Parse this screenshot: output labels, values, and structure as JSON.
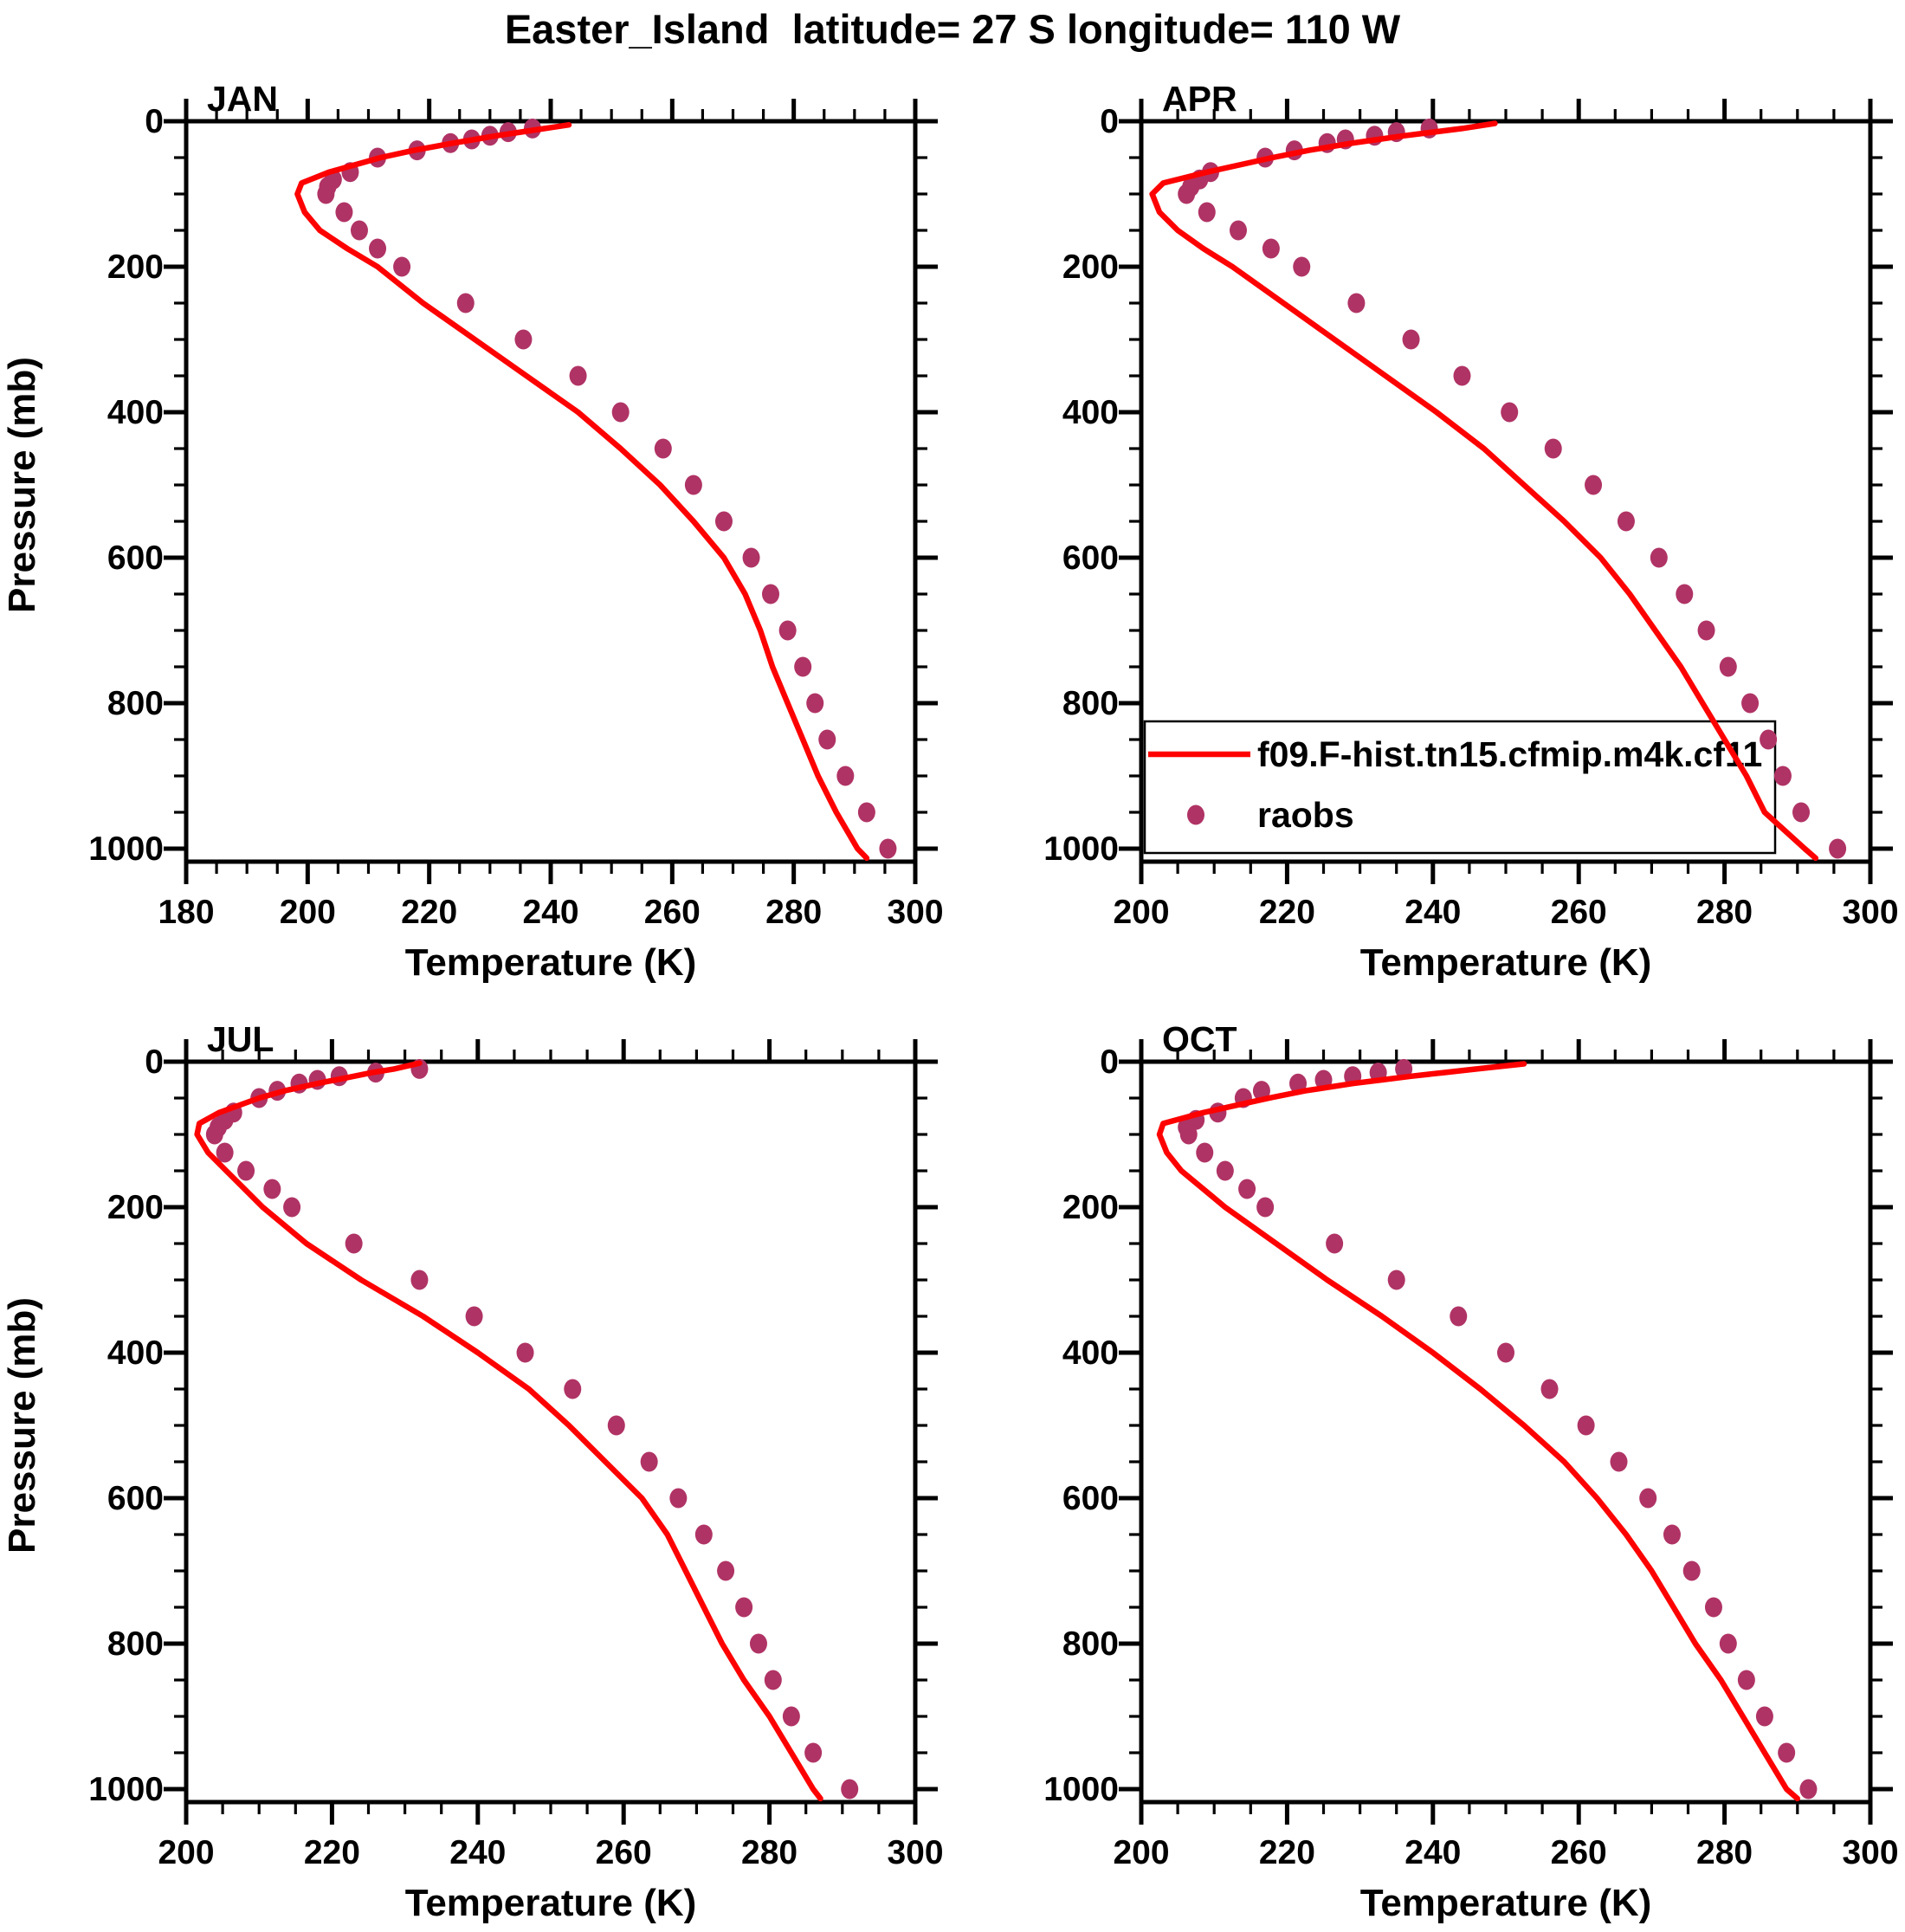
{
  "title": "Easter_Island  latitude= 27 S longitude= 110 W",
  "colors": {
    "model_line": "#FF0000",
    "raobs_marker": "#B03365",
    "axis": "#000000",
    "background": "#FFFFFF"
  },
  "legend": {
    "position": "inside APR panel, lower left",
    "entries": [
      {
        "label": "f09.F-hist.tn15.cfmip.m4k.cf11",
        "type": "line",
        "color": "#FF0000"
      },
      {
        "label": "raobs",
        "type": "marker",
        "color": "#B03365"
      }
    ]
  },
  "axes": {
    "xlabel": "Temperature (K)",
    "ylabel": "Pressure (mb)",
    "y_ticks": [
      0,
      200,
      400,
      600,
      800,
      1000
    ],
    "y_minor_step_mb": 50,
    "x_major_step_k": 20,
    "x_minor_step_k": 5,
    "y_range_mb": [
      0,
      1018
    ],
    "y_axis_direction": "increasing downward",
    "grid": false
  },
  "chart_data": [
    {
      "type": "line",
      "panel": "JAN",
      "xlabel": "Temperature (K)",
      "ylabel": "Pressure (mb)",
      "xlim": [
        180,
        300
      ],
      "x_ticks": [
        180,
        200,
        220,
        240,
        260,
        280,
        300
      ],
      "series": [
        {
          "name": "f09.F-hist.tn15.cfmip.m4k.cf11",
          "style": "line",
          "color": "#FF0000",
          "pressure_mb": [
            5,
            10,
            15,
            20,
            25,
            30,
            40,
            50,
            70,
            85,
            100,
            125,
            150,
            175,
            200,
            250,
            300,
            350,
            400,
            450,
            500,
            550,
            600,
            650,
            700,
            750,
            800,
            850,
            900,
            950,
            1000,
            1013
          ],
          "temperature_k": [
            243,
            239,
            235,
            231,
            227.5,
            224,
            217.5,
            212,
            203.5,
            199,
            198.3,
            199.5,
            202,
            206.5,
            211.5,
            219,
            227.5,
            236,
            244.5,
            251.5,
            258,
            263.5,
            268.5,
            272,
            274.5,
            276.5,
            279,
            281.5,
            284,
            287,
            290.5,
            292
          ]
        },
        {
          "name": "raobs",
          "style": "scatter",
          "color": "#B03365",
          "pressure_mb": [
            10,
            15,
            20,
            25,
            30,
            40,
            50,
            70,
            80,
            90,
            100,
            125,
            150,
            175,
            200,
            250,
            300,
            350,
            400,
            450,
            500,
            550,
            600,
            650,
            700,
            750,
            800,
            850,
            900,
            950,
            1000
          ],
          "temperature_k": [
            237,
            233,
            230,
            227,
            223.5,
            218,
            211.5,
            207,
            204.2,
            203.3,
            203,
            206,
            208.5,
            211.5,
            215.5,
            226,
            235.5,
            244.5,
            251.5,
            258.5,
            263.5,
            268.5,
            273,
            276.2,
            279,
            281.5,
            283.5,
            285.5,
            288.5,
            292,
            295.5
          ]
        }
      ]
    },
    {
      "type": "line",
      "panel": "APR",
      "xlabel": "Temperature (K)",
      "ylabel": "Pressure (mb)",
      "xlim": [
        200,
        300
      ],
      "x_ticks": [
        200,
        220,
        240,
        260,
        280,
        300
      ],
      "series": [
        {
          "name": "f09.F-hist.tn15.cfmip.m4k.cf11",
          "style": "line",
          "color": "#FF0000",
          "pressure_mb": [
            3,
            10,
            15,
            20,
            25,
            30,
            40,
            50,
            70,
            85,
            100,
            125,
            150,
            175,
            200,
            250,
            300,
            350,
            400,
            450,
            500,
            550,
            600,
            650,
            700,
            750,
            800,
            850,
            900,
            950,
            1000,
            1013
          ],
          "temperature_k": [
            248.5,
            244,
            240,
            236,
            232.5,
            229,
            223,
            218,
            209,
            203,
            201.5,
            202.5,
            205,
            208.5,
            212.5,
            219.5,
            226.5,
            233.5,
            240.5,
            247,
            252.5,
            258,
            263,
            267,
            270.5,
            274,
            277,
            280,
            283,
            285.5,
            291,
            292.5
          ]
        },
        {
          "name": "raobs",
          "style": "scatter",
          "color": "#B03365",
          "pressure_mb": [
            10,
            15,
            20,
            25,
            30,
            40,
            50,
            70,
            80,
            90,
            100,
            125,
            150,
            175,
            200,
            250,
            300,
            350,
            400,
            450,
            500,
            550,
            600,
            650,
            700,
            750,
            800,
            850,
            900,
            950,
            1000
          ],
          "temperature_k": [
            239.5,
            235,
            232,
            228,
            225.5,
            221,
            217,
            209.5,
            208,
            206.8,
            206.2,
            209,
            213.3,
            217.8,
            222,
            229.5,
            237,
            244,
            250.5,
            256.5,
            262,
            266.5,
            271,
            274.5,
            277.5,
            280.5,
            283.5,
            286,
            288,
            290.5,
            295.5
          ]
        }
      ]
    },
    {
      "type": "line",
      "panel": "JUL",
      "xlabel": "Temperature (K)",
      "ylabel": "Pressure (mb)",
      "xlim": [
        200,
        300
      ],
      "x_ticks": [
        200,
        220,
        240,
        260,
        280,
        300
      ],
      "series": [
        {
          "name": "f09.F-hist.tn15.cfmip.m4k.cf11",
          "style": "line",
          "color": "#FF0000",
          "pressure_mb": [
            2,
            10,
            15,
            20,
            25,
            30,
            40,
            50,
            70,
            85,
            100,
            125,
            150,
            175,
            200,
            250,
            300,
            350,
            400,
            450,
            500,
            550,
            600,
            650,
            700,
            750,
            800,
            850,
            900,
            950,
            1000,
            1013
          ],
          "temperature_k": [
            232,
            228.5,
            225.5,
            223,
            220.5,
            218,
            213.5,
            210,
            204.5,
            201.8,
            201.5,
            203,
            205.5,
            208,
            210.5,
            216.5,
            224,
            232.5,
            240,
            247,
            252.5,
            257.5,
            262.5,
            266,
            268.5,
            271,
            273.5,
            276.5,
            280,
            283,
            286,
            287
          ]
        },
        {
          "name": "raobs",
          "style": "scatter",
          "color": "#B03365",
          "pressure_mb": [
            10,
            15,
            20,
            25,
            30,
            40,
            50,
            70,
            80,
            90,
            100,
            125,
            150,
            175,
            200,
            250,
            300,
            350,
            400,
            450,
            500,
            550,
            600,
            650,
            700,
            750,
            800,
            850,
            900,
            950,
            1000
          ],
          "temperature_k": [
            232,
            226,
            221,
            218,
            215.5,
            212.5,
            210,
            206.5,
            205.3,
            204.4,
            203.9,
            205.3,
            208.2,
            211.8,
            214.5,
            223,
            232,
            239.5,
            246.5,
            253,
            259,
            263.5,
            267.5,
            271,
            274,
            276.5,
            278.5,
            280.5,
            283,
            286,
            291
          ]
        }
      ]
    },
    {
      "type": "line",
      "panel": "OCT",
      "xlabel": "Temperature (K)",
      "ylabel": "Pressure (mb)",
      "xlim": [
        200,
        300
      ],
      "x_ticks": [
        200,
        220,
        240,
        260,
        280,
        300
      ],
      "series": [
        {
          "name": "f09.F-hist.tn15.cfmip.m4k.cf11",
          "style": "line",
          "color": "#FF0000",
          "pressure_mb": [
            3,
            10,
            15,
            20,
            25,
            30,
            40,
            50,
            70,
            85,
            100,
            125,
            150,
            175,
            200,
            250,
            300,
            350,
            400,
            450,
            500,
            550,
            600,
            650,
            700,
            750,
            800,
            850,
            900,
            950,
            1000,
            1013
          ],
          "temperature_k": [
            252.5,
            246,
            241.5,
            237,
            233,
            229,
            222.5,
            217.5,
            208.5,
            203,
            202.5,
            203.5,
            205.5,
            208.5,
            211.5,
            218.5,
            225.5,
            233,
            240,
            246.5,
            252.5,
            258,
            262.5,
            266.5,
            270,
            273,
            276,
            279.5,
            282.5,
            285.5,
            288.5,
            290
          ]
        },
        {
          "name": "raobs",
          "style": "scatter",
          "color": "#B03365",
          "pressure_mb": [
            10,
            15,
            20,
            25,
            30,
            40,
            50,
            70,
            80,
            90,
            100,
            125,
            150,
            175,
            200,
            250,
            300,
            350,
            400,
            450,
            500,
            550,
            600,
            650,
            700,
            750,
            800,
            850,
            900,
            950,
            1000
          ],
          "temperature_k": [
            236,
            232.5,
            229,
            225,
            221.5,
            216.5,
            214,
            210.5,
            207.5,
            206.2,
            206.5,
            208.7,
            211.5,
            214.5,
            217,
            226.5,
            235,
            243.5,
            250,
            256,
            261,
            265.5,
            269.5,
            272.8,
            275.5,
            278.5,
            280.5,
            283,
            285.5,
            288.5,
            291.5
          ]
        }
      ]
    }
  ]
}
